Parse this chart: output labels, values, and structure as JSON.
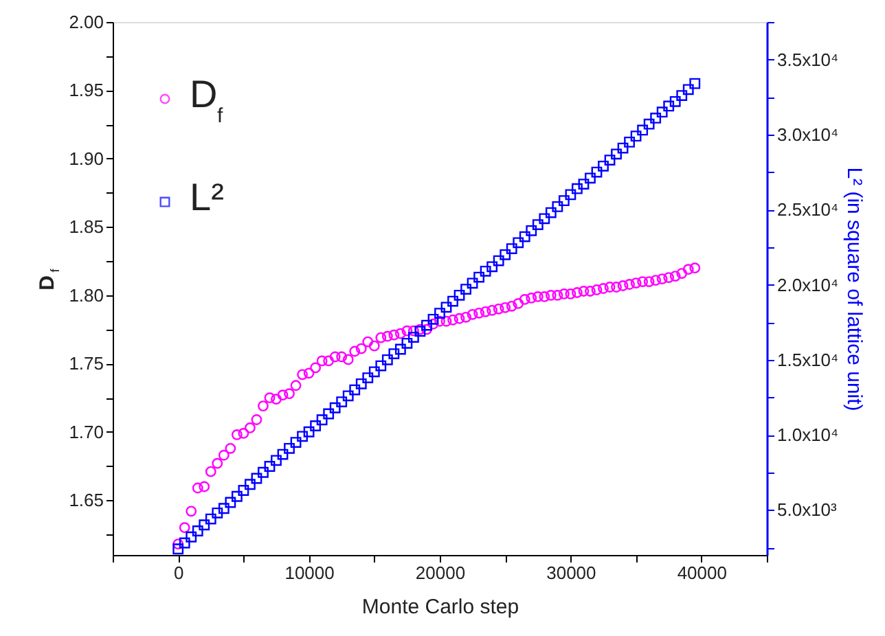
{
  "chart_data": {
    "type": "scatter",
    "xlabel": "Monte Carlo step",
    "ylabel": "D$_{f}$",
    "y2label": "L² (in square of lattice unit)",
    "x": [
      0,
      500,
      1000,
      1500,
      2000,
      2500,
      3000,
      3500,
      4000,
      4500,
      5000,
      5500,
      6000,
      6500,
      7000,
      7500,
      8000,
      8500,
      9000,
      9500,
      10000,
      10500,
      11000,
      11500,
      12000,
      12500,
      13000,
      13500,
      14000,
      14500,
      15000,
      15500,
      16000,
      16500,
      17000,
      17500,
      18000,
      18500,
      19000,
      19500,
      20000,
      20500,
      21000,
      21500,
      22000,
      22500,
      23000,
      23500,
      24000,
      24500,
      25000,
      25500,
      26000,
      26500,
      27000,
      27500,
      28000,
      28500,
      29000,
      29500,
      30000,
      30500,
      31000,
      31500,
      32000,
      32500,
      33000,
      33500,
      34000,
      34500,
      35000,
      35500,
      36000,
      36500,
      37000,
      37500,
      38000,
      38500,
      39000,
      39500
    ],
    "series": [
      {
        "name": "D$_{f}$",
        "color": "#ff00ff",
        "marker": "circle",
        "values": [
          1.618,
          1.63,
          1.642,
          1.659,
          1.66,
          1.671,
          1.677,
          1.683,
          1.688,
          1.698,
          1.699,
          1.703,
          1.709,
          1.719,
          1.725,
          1.724,
          1.727,
          1.728,
          1.734,
          1.742,
          1.743,
          1.747,
          1.752,
          1.752,
          1.755,
          1.755,
          1.753,
          1.759,
          1.761,
          1.766,
          1.763,
          1.769,
          1.77,
          1.771,
          1.772,
          1.774,
          1.774,
          1.775,
          1.775,
          1.779,
          1.781,
          1.781,
          1.782,
          1.783,
          1.784,
          1.786,
          1.787,
          1.788,
          1.789,
          1.79,
          1.791,
          1.792,
          1.794,
          1.797,
          1.798,
          1.799,
          1.799,
          1.8,
          1.8,
          1.801,
          1.801,
          1.802,
          1.803,
          1.803,
          1.804,
          1.805,
          1.806,
          1.806,
          1.807,
          1.808,
          1.809,
          1.81,
          1.81,
          1.811,
          1.812,
          1.813,
          1.814,
          1.816,
          1.819,
          1.82
        ]
      },
      {
        "name": "L²",
        "color": "#0000ff",
        "marker": "square",
        "axis": "y2",
        "values": [
          2400,
          2800,
          3200,
          3600,
          4000,
          4400,
          4800,
          5100,
          5500,
          5900,
          6300,
          6700,
          7100,
          7500,
          7900,
          8300,
          8700,
          9100,
          9500,
          9900,
          10200,
          10600,
          11000,
          11400,
          11800,
          12200,
          12600,
          13000,
          13400,
          13800,
          14200,
          14600,
          15000,
          15400,
          15700,
          16100,
          16500,
          16900,
          17300,
          17700,
          18100,
          18500,
          18900,
          19300,
          19700,
          20100,
          20500,
          20900,
          21200,
          21600,
          22000,
          22400,
          22800,
          23200,
          23600,
          24000,
          24400,
          24800,
          25200,
          25600,
          26000,
          26400,
          26700,
          27100,
          27500,
          27900,
          28300,
          28700,
          29100,
          29500,
          29900,
          30300,
          30700,
          31100,
          31500,
          31900,
          32200,
          32600,
          33000,
          33400
        ]
      }
    ],
    "xlim": [
      -5000,
      45000
    ],
    "xticks": [
      {
        "value": -5000,
        "label": null
      },
      0,
      {
        "value": 5000,
        "label": null
      },
      10000,
      {
        "value": 15000,
        "label": null
      },
      20000,
      {
        "value": 25000,
        "label": null
      },
      30000,
      {
        "value": 35000,
        "label": null
      },
      40000,
      {
        "value": 45000,
        "label": null
      }
    ],
    "ylim": [
      1.61,
      2.0
    ],
    "yticks": [
      {
        "value": 1.625,
        "label": null
      },
      1.65,
      {
        "value": 1.675,
        "label": null
      },
      {
        "value": 1.7,
        "label": "1.70"
      },
      {
        "value": 1.725,
        "label": null
      },
      1.75,
      {
        "value": 1.775,
        "label": null
      },
      {
        "value": 1.8,
        "label": "1.80"
      },
      {
        "value": 1.825,
        "label": null
      },
      1.85,
      {
        "value": 1.875,
        "label": null
      },
      {
        "value": 1.9,
        "label": "1.90"
      },
      {
        "value": 1.925,
        "label": null
      },
      1.95,
      {
        "value": 1.975,
        "label": null
      },
      {
        "value": 2.0,
        "label": "2.00"
      }
    ],
    "y2lim": [
      2000,
      37500
    ],
    "y2ticks": [
      {
        "value": 2500,
        "label": null
      },
      {
        "value": 5000,
        "label": "5.0x10³"
      },
      {
        "value": 7500,
        "label": null
      },
      {
        "value": 10000,
        "label": "1.0x10⁴"
      },
      {
        "value": 12500,
        "label": null
      },
      {
        "value": 15000,
        "label": "1.5x10⁴"
      },
      {
        "value": 17500,
        "label": null
      },
      {
        "value": 20000,
        "label": "2.0x10⁴"
      },
      {
        "value": 22500,
        "label": null
      },
      {
        "value": 25000,
        "label": "2.5x10⁴"
      },
      {
        "value": 27500,
        "label": null
      },
      {
        "value": 30000,
        "label": "3.0x10⁴"
      },
      {
        "value": 32500,
        "label": null
      },
      {
        "value": 35000,
        "label": "3.5x10⁴"
      },
      {
        "value": 37500,
        "label": null
      }
    ],
    "grid": false,
    "legend": "top left"
  }
}
